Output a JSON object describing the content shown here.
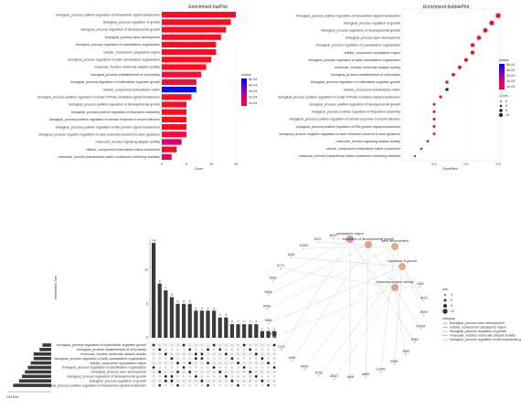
{
  "chart_data": [
    {
      "type": "bar",
      "title": "Enrichment barPlot",
      "xlabel": "Count",
      "xlim": [
        0,
        15
      ],
      "xticks": [
        "0",
        "5",
        "10",
        "15"
      ],
      "legend": {
        "title": "pvalue",
        "labels": [
          "5e-04",
          "4e-04",
          "3e-04",
          "2e-04",
          "1e-04"
        ],
        "colors": [
          "#0000ff",
          "#5500d0",
          "#aa00a0",
          "#e0006a",
          "#ff0030"
        ]
      },
      "categories": [
        "biological_process positive regulation of intracellular signal transduction",
        "biological_process regulation of growth",
        "biological_process regulation of developmental growth",
        "biological_process axon development",
        "biological_process regulation of cytoskeleton organization",
        "cellular_component cytoplasmic region",
        "biological_process regulation of actin cytoskeleton organization",
        "molecular_function molecular adaptor activity",
        "biological_process establishment of cell polarity",
        "biological_process regulation of multicellular organism growth",
        "cellular_component extracellular matrix",
        "biological_process positive regulation of small GTPase mediated signal transduction",
        "biological_process positive regulation of developmental growth",
        "biological_process positive regulation of filopodium assembly",
        "biological_process positive regulation of cellular response to insulin stimulus",
        "biological_process positive regulation of Rho protein signal transduction",
        "biological_process negative regulation of axon extension involved in axon guidance",
        "molecular_function signaling adaptor activity",
        "cellular_component extracellular matrix component",
        "molecular_function extracellular matrix constituent conferring elasticity"
      ],
      "values": [
        15,
        14,
        13,
        12,
        11,
        11,
        10,
        9,
        8,
        7,
        7,
        6,
        5,
        5,
        5,
        5,
        5,
        4,
        3,
        2
      ],
      "colors": [
        "#ff0a1e",
        "#ff0a1e",
        "#ff0a1e",
        "#ff0a1e",
        "#ff0a1e",
        "#ff0a1e",
        "#ff0a1e",
        "#ff0a1e",
        "#fb0b30",
        "#f40c3c",
        "#0010ff",
        "#ff0a1e",
        "#ff0a1e",
        "#ff0a1e",
        "#ff0a1e",
        "#ff0a1e",
        "#f50c3a",
        "#d8006e",
        "#ff0a1e",
        "#e10a5a"
      ]
    },
    {
      "type": "scatter",
      "title": "Enrichment bubblePlot",
      "xlabel": "GeneRatio",
      "xlim": [
        0,
        0.3
      ],
      "xticks": [
        "0.1",
        "0.2",
        "0.3"
      ],
      "legend": {
        "title": "pvalue",
        "labels": [
          "5e-04",
          "4e-04",
          "3e-04",
          "2e-04",
          "1e-04"
        ],
        "colors": [
          "#0000ff",
          "#5500d0",
          "#aa00a0",
          "#e0006a",
          "#ff0030"
        ],
        "size_title": "Count",
        "size_labels": [
          "3",
          "6",
          "9",
          "12"
        ]
      },
      "categories_ref": "same as bar chart",
      "values": [
        0.3,
        0.28,
        0.26,
        0.24,
        0.22,
        0.22,
        0.2,
        0.18,
        0.16,
        0.14,
        0.14,
        0.12,
        0.1,
        0.1,
        0.1,
        0.1,
        0.1,
        0.08,
        0.06,
        0.04
      ]
    },
    {
      "type": "bar",
      "subtype": "upset",
      "xlabel": "Set Size",
      "ylabel": "Intersection Size",
      "set_labels": [
        "biological_process regulation of multicellular organism growth",
        "biological_process establishment of cell polarity",
        "molecular_function molecular adaptor activity",
        "biological_process regulation of actin cytoskeleton organization",
        "cellular_component cytoplasmic region",
        "biological_process regulation of cytoskeleton organization",
        "biological_process axon development",
        "biological_process regulation of developmental growth",
        "biological_process regulation of growth",
        "biological_process positive regulation of intracellular signal transduction"
      ],
      "set_sizes": [
        3,
        4,
        6,
        6,
        7,
        8,
        9,
        10,
        11,
        13
      ],
      "intersections": [
        14,
        8,
        7,
        6,
        5,
        5,
        5,
        4,
        4,
        4,
        4,
        3,
        3,
        2,
        2,
        2,
        2,
        2,
        1,
        1,
        1
      ]
    },
    {
      "type": "network",
      "categories": [
        "biological_process axon development",
        "cellular_component cytoplasmic region",
        "biological_process regulation of growth",
        "molecular_function molecular adaptor activity",
        "biological_process regulation of developmental growth"
      ],
      "hub_labels": [
        "axon development",
        "cytoplasmic region",
        "molecular adaptor activity",
        "regulation of growth",
        "regulation of developmental growth"
      ],
      "gene_labels": [
        "6875",
        "5473",
        "11093",
        "1026",
        "6713",
        "5562",
        "5564",
        "6498",
        "5881",
        "3040",
        "7122",
        "1499",
        "6093",
        "5793",
        "26017",
        "1809",
        "6660",
        "10253",
        "5058",
        "3965",
        "3082",
        "51435",
        "8200",
        "5473",
        "3082"
      ],
      "legend": {
        "size_title": "size",
        "size_labels": [
          "3",
          "6",
          "9",
          "12"
        ],
        "category_title": "category"
      }
    }
  ]
}
